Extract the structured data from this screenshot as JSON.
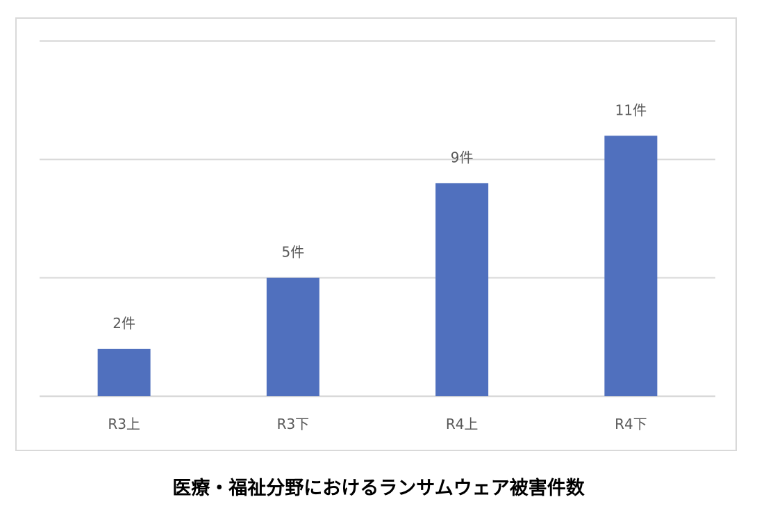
{
  "chart_data": {
    "type": "bar",
    "title": "医療・福祉分野におけるランサムウェア被害件数",
    "categories": [
      "R3上",
      "R3下",
      "R4上",
      "R4下"
    ],
    "values": [
      2,
      5,
      9,
      11
    ],
    "data_labels": [
      "2件",
      "5件",
      "9件",
      "11件"
    ],
    "ylim": [
      0,
      15
    ],
    "yticks": [
      0,
      5,
      10,
      15
    ],
    "y_tick_labels_shown": false,
    "grid": true,
    "legend": "none",
    "colors": {
      "bar": "#5070BE",
      "grid": "#D9D9D9",
      "label": "#595959"
    }
  }
}
